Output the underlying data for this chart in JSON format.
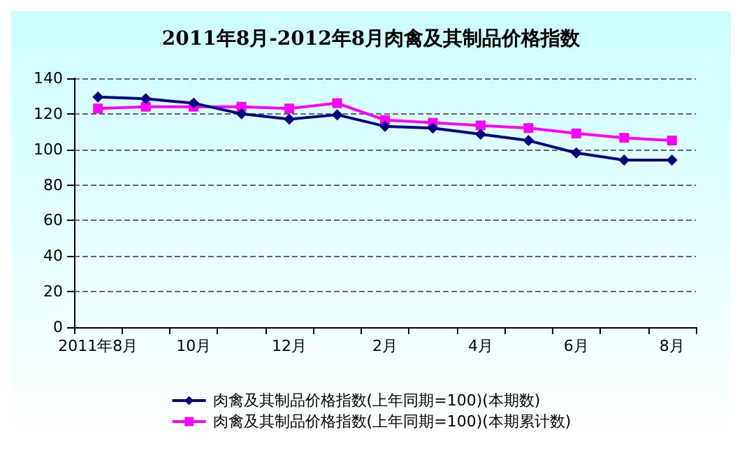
{
  "chart_data": {
    "type": "line",
    "title": "2011年8月-2012年8月肉禽及其制品价格指数",
    "categories": [
      "2011年8月",
      null,
      "10月",
      null,
      "12月",
      null,
      "2月",
      null,
      "4月",
      null,
      "6月",
      null,
      "8月"
    ],
    "series": [
      {
        "name": "肉禽及其制品价格指数(上年同期=100)(本期数)",
        "color": "#000080",
        "marker": "diamond",
        "values": [
          129.5,
          128.5,
          126,
          120,
          117,
          119.5,
          113,
          112,
          108.5,
          105,
          98,
          94,
          94
        ]
      },
      {
        "name": "肉禽及其制品价格指数(上年同期=100)(本期累计数)",
        "color": "#ff00ff",
        "marker": "square",
        "values": [
          123,
          124,
          124,
          124,
          123,
          126,
          116.5,
          115,
          113.5,
          112,
          109,
          106.5,
          105
        ]
      }
    ],
    "ylim": [
      0,
      140
    ],
    "yticks": [
      0,
      20,
      40,
      60,
      80,
      100,
      120,
      140
    ],
    "grid": "y",
    "legend": "bottom",
    "line_style": "solid"
  }
}
